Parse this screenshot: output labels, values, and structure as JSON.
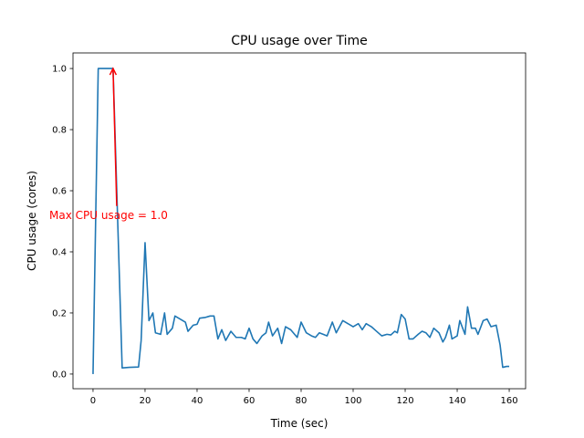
{
  "chart_data": {
    "type": "line",
    "title": "CPU usage over Time",
    "xlabel": "Time (sec)",
    "ylabel": "CPU usage (cores)",
    "xlim": [
      -7.7,
      166.3
    ],
    "ylim": [
      -0.048,
      1.051
    ],
    "xticks": [
      0,
      20,
      40,
      60,
      80,
      100,
      120,
      140,
      160
    ],
    "xtick_labels": [
      "0",
      "20",
      "40",
      "60",
      "80",
      "100",
      "120",
      "140",
      "160"
    ],
    "yticks": [
      0,
      0.2,
      0.4,
      0.6,
      0.8,
      1.0
    ],
    "ytick_labels": [
      "0.0",
      "0.2",
      "0.4",
      "0.6",
      "0.8",
      "1.0"
    ],
    "grid": false,
    "series": [
      {
        "name": "CPU usage",
        "color": "#1f77b4",
        "points": [
          [
            0,
            0
          ],
          [
            2,
            1.0
          ],
          [
            5,
            1.0
          ],
          [
            7.7,
            1.0
          ],
          [
            11.2,
            0.02
          ],
          [
            14,
            0.022
          ],
          [
            17.5,
            0.023
          ],
          [
            18.5,
            0.11
          ],
          [
            20,
            0.43
          ],
          [
            21.5,
            0.175
          ],
          [
            23,
            0.2
          ],
          [
            24,
            0.135
          ],
          [
            26,
            0.13
          ],
          [
            27.5,
            0.2
          ],
          [
            28.5,
            0.13
          ],
          [
            30.5,
            0.15
          ],
          [
            31.5,
            0.19
          ],
          [
            33.5,
            0.18
          ],
          [
            35.5,
            0.17
          ],
          [
            36.5,
            0.14
          ],
          [
            38.5,
            0.16
          ],
          [
            40,
            0.163
          ],
          [
            41,
            0.183
          ],
          [
            43,
            0.185
          ],
          [
            45,
            0.19
          ],
          [
            46.5,
            0.19
          ],
          [
            48,
            0.115
          ],
          [
            49.5,
            0.145
          ],
          [
            51,
            0.11
          ],
          [
            53,
            0.14
          ],
          [
            55,
            0.12
          ],
          [
            57,
            0.12
          ],
          [
            58.5,
            0.115
          ],
          [
            60,
            0.15
          ],
          [
            61.5,
            0.115
          ],
          [
            63,
            0.1
          ],
          [
            65,
            0.125
          ],
          [
            66.5,
            0.135
          ],
          [
            67.5,
            0.17
          ],
          [
            69,
            0.125
          ],
          [
            71,
            0.15
          ],
          [
            72.5,
            0.1
          ],
          [
            74,
            0.155
          ],
          [
            76,
            0.145
          ],
          [
            78.5,
            0.12
          ],
          [
            80,
            0.17
          ],
          [
            82,
            0.135
          ],
          [
            84,
            0.125
          ],
          [
            85.5,
            0.12
          ],
          [
            87,
            0.135
          ],
          [
            88.5,
            0.13
          ],
          [
            90,
            0.125
          ],
          [
            92,
            0.17
          ],
          [
            93.5,
            0.135
          ],
          [
            96,
            0.175
          ],
          [
            98,
            0.165
          ],
          [
            100,
            0.155
          ],
          [
            102,
            0.165
          ],
          [
            103.5,
            0.145
          ],
          [
            105,
            0.165
          ],
          [
            107,
            0.155
          ],
          [
            109,
            0.14
          ],
          [
            111,
            0.125
          ],
          [
            113,
            0.13
          ],
          [
            114.5,
            0.128
          ],
          [
            116,
            0.14
          ],
          [
            117,
            0.135
          ],
          [
            118.5,
            0.195
          ],
          [
            120,
            0.18
          ],
          [
            121.5,
            0.115
          ],
          [
            123,
            0.115
          ],
          [
            125,
            0.13
          ],
          [
            126.5,
            0.14
          ],
          [
            128,
            0.135
          ],
          [
            129.5,
            0.12
          ],
          [
            131,
            0.15
          ],
          [
            133,
            0.135
          ],
          [
            134.5,
            0.105
          ],
          [
            135.5,
            0.12
          ],
          [
            137,
            0.16
          ],
          [
            138,
            0.115
          ],
          [
            140,
            0.125
          ],
          [
            141,
            0.175
          ],
          [
            143,
            0.13
          ],
          [
            144,
            0.22
          ],
          [
            145.5,
            0.15
          ],
          [
            147,
            0.15
          ],
          [
            148,
            0.13
          ],
          [
            150,
            0.175
          ],
          [
            151.5,
            0.18
          ],
          [
            153,
            0.155
          ],
          [
            155,
            0.16
          ],
          [
            156.5,
            0.095
          ],
          [
            157.5,
            0.022
          ],
          [
            159,
            0.025
          ],
          [
            160,
            0.025
          ]
        ]
      }
    ],
    "annotation": {
      "text": "Max CPU usage = 1.0",
      "color": "#ff0000",
      "xy": [
        7.7,
        1.0
      ],
      "xytext": [
        -16.8,
        0.52
      ],
      "arrow_tail": [
        9.1,
        0.55
      ]
    }
  }
}
